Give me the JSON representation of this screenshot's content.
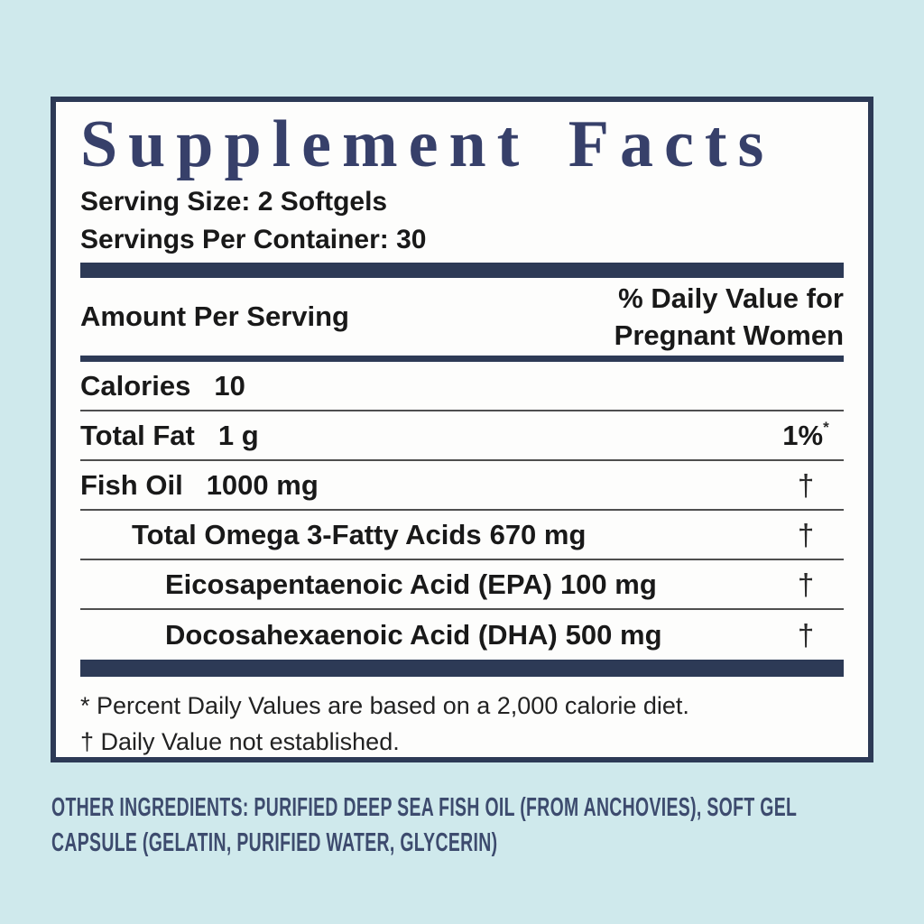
{
  "colors": {
    "bg": "#cfe9ec",
    "navy": "#2d3a56",
    "title": "#37406a",
    "text": "#191919",
    "rule": "#4f4f4f",
    "ingredients": "#3d4b6e",
    "panel-bg": "#fdfdfc"
  },
  "label": {
    "title": "Supplement Facts",
    "serving_size": "Serving Size: 2 Softgels",
    "servings_per_container": "Servings Per Container: 30",
    "header": {
      "amount_col": "Amount Per Serving",
      "dv_col_line1": "% Daily Value for",
      "dv_col_line2": "Pregnant Women"
    },
    "rows": [
      {
        "name": "Calories",
        "amount": "10",
        "dv": "",
        "dv_sup": ""
      },
      {
        "name": "Total Fat",
        "amount": "1 g",
        "dv": "1%",
        "dv_sup": "*"
      },
      {
        "name": "Fish Oil",
        "amount": "1000 mg",
        "dv": "†",
        "dv_sup": ""
      },
      {
        "name": "Total Omega 3-Fatty Acids",
        "amount": "670 mg",
        "dv": "†",
        "dv_sup": ""
      },
      {
        "name": "Eicosapentaenoic Acid (EPA)",
        "amount": "100 mg",
        "dv": "†",
        "dv_sup": ""
      },
      {
        "name": "Docosahexaenoic Acid (DHA)",
        "amount": "500 mg",
        "dv": "†",
        "dv_sup": ""
      }
    ],
    "footnote_asterisk": "* Percent Daily Values are based on a 2,000 calorie diet.",
    "footnote_dagger": "† Daily Value not established.",
    "other_ingredients": "OTHER INGREDIENTS: PURIFIED DEEP SEA FISH OIL (FROM ANCHOVIES), SOFT GEL CAPSULE (GELATIN, PURIFIED WATER, GLYCERIN)"
  }
}
